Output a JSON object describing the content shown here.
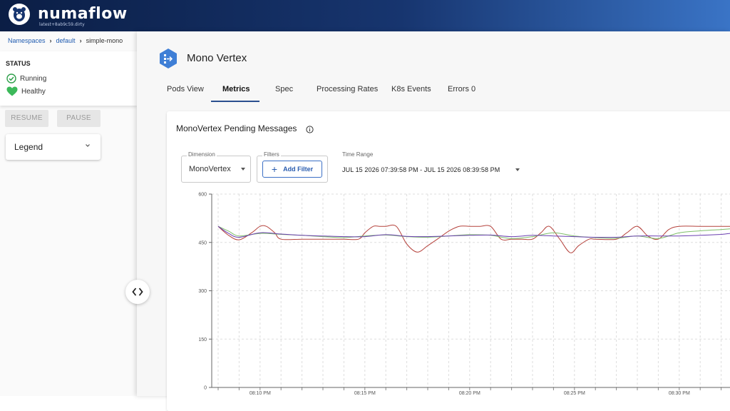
{
  "header": {
    "brand": "numaflow",
    "version": "latest+8ab9c59.dirty"
  },
  "breadcrumb": {
    "items": [
      "Namespaces",
      "default"
    ],
    "current": "simple-mono"
  },
  "status": {
    "title": "STATUS",
    "running": "Running",
    "healthy": "Healthy"
  },
  "actions": {
    "resume": "RESUME",
    "pause": "PAUSE"
  },
  "legend": {
    "label": "Legend"
  },
  "vertex": {
    "title": "Mono Vertex"
  },
  "tabs": [
    "Pods View",
    "Metrics",
    "Spec",
    "Processing Rates",
    "K8s Events",
    "Errors 0"
  ],
  "active_tab": "Metrics",
  "metrics": {
    "title": "MonoVertex Pending Messages",
    "dimension_label": "Dimension",
    "dimension_value": "MonoVertex",
    "filters_label": "Filters",
    "add_filter": "Add Filter",
    "time_range_label": "Time Range",
    "time_range_value": "JUL 15 2026 07:39:58 PM - JUL 15 2026 08:39:58 PM"
  },
  "colors": {
    "series_red": "#b5423c",
    "series_green": "#7fbf6a",
    "series_purple": "#6a3fb0",
    "accent": "#2a5db0",
    "healthy": "#3cb95a"
  },
  "chart_data": {
    "type": "line",
    "ylim": [
      0,
      600
    ],
    "y_ticks": [
      "600",
      "450",
      "300",
      "150",
      "0"
    ],
    "x_ticks": [
      "08:10 PM",
      "08:15 PM",
      "08:20 PM",
      "08:25 PM",
      "08:30 PM"
    ],
    "x_start_minute": 8.0,
    "x_end_minute": 32.5,
    "series": [
      {
        "color": "#b5423c",
        "x": [
          8.0,
          8.5,
          9.0,
          9.6,
          10.0,
          10.3,
          10.7,
          11.0,
          12.0,
          13.0,
          14.0,
          14.7,
          15.0,
          15.4,
          15.7,
          16.0,
          16.5,
          17.0,
          17.5,
          18.0,
          18.5,
          19.0,
          19.5,
          20.0,
          20.5,
          21.0,
          21.5,
          22.0,
          22.5,
          23.0,
          23.4,
          23.8,
          24.3,
          24.8,
          25.2,
          25.7,
          26.0,
          27.0,
          27.5,
          28.0,
          28.5,
          29.0,
          29.5,
          30.0,
          31.0,
          32.0,
          32.5
        ],
        "y": [
          500,
          472,
          458,
          480,
          500,
          500,
          480,
          460,
          460,
          460,
          460,
          460,
          480,
          500,
          500,
          500,
          500,
          445,
          420,
          440,
          462,
          485,
          500,
          500,
          500,
          500,
          460,
          460,
          460,
          460,
          480,
          500,
          460,
          418,
          440,
          460,
          460,
          460,
          480,
          500,
          470,
          460,
          490,
          500,
          500,
          500,
          500
        ]
      },
      {
        "color": "#7fbf6a",
        "x": [
          8.0,
          8.5,
          9.0,
          10.0,
          11.0,
          12.0,
          13.0,
          14.0,
          15.0,
          16.0,
          17.0,
          18.0,
          19.0,
          20.0,
          21.0,
          22.0,
          23.0,
          24.0,
          25.0,
          26.0,
          27.0,
          28.0,
          29.0,
          30.0,
          31.0,
          32.0,
          32.5
        ],
        "y": [
          500,
          485,
          470,
          478,
          475,
          472,
          468,
          465,
          470,
          473,
          468,
          466,
          470,
          474,
          472,
          462,
          468,
          480,
          470,
          465,
          463,
          470,
          462,
          480,
          486,
          490,
          492
        ]
      },
      {
        "color": "#6a3fb0",
        "x": [
          8.0,
          8.5,
          9.0,
          10.0,
          11.0,
          12.0,
          13.0,
          14.0,
          15.0,
          16.0,
          17.0,
          18.0,
          19.0,
          20.0,
          21.0,
          22.0,
          23.0,
          24.0,
          25.0,
          26.0,
          27.0,
          28.0,
          29.0,
          30.0,
          31.0,
          32.0,
          32.5
        ],
        "y": [
          500,
          478,
          466,
          480,
          476,
          472,
          470,
          468,
          468,
          474,
          469,
          468,
          470,
          472,
          473,
          468,
          472,
          470,
          468,
          466,
          466,
          470,
          470,
          470,
          472,
          475,
          478
        ]
      }
    ]
  }
}
